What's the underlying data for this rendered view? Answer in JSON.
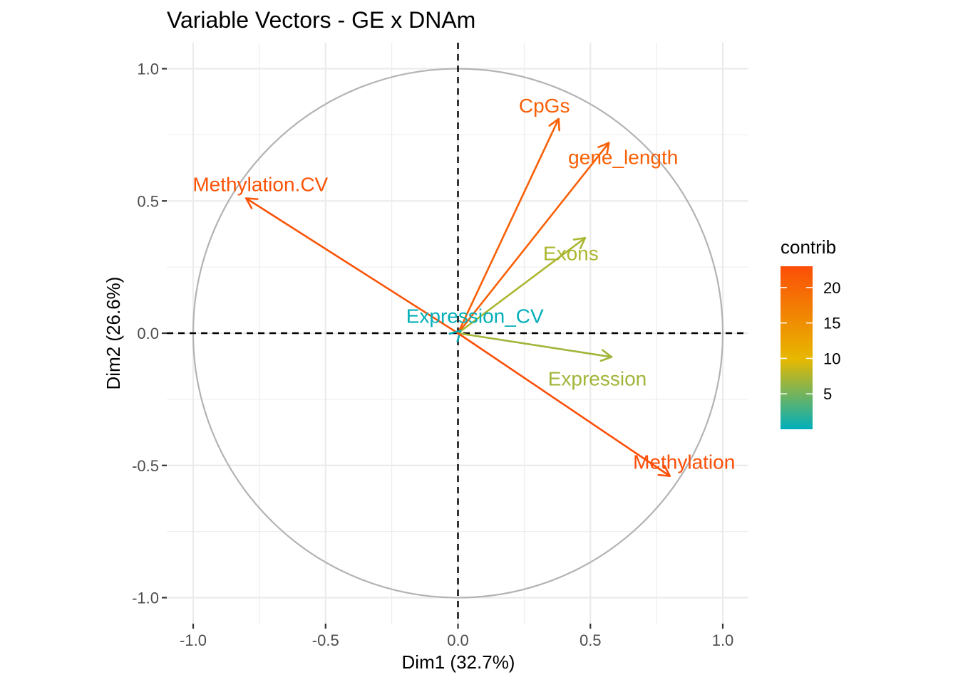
{
  "chart_data": {
    "type": "scatter",
    "subtype": "pca-variable-correlation-circle",
    "title": "Variable Vectors - GE x DNAm",
    "xlabel": "Dim1 (32.7%)",
    "ylabel": "Dim2 (26.6%)",
    "xlim": [
      -1.1,
      1.1
    ],
    "ylim": [
      -1.1,
      1.1
    ],
    "x_ticks": [
      -1.0,
      -0.5,
      0.0,
      0.5,
      1.0
    ],
    "x_tick_labels": [
      "-1.0",
      "-0.5",
      "0.0",
      "0.5",
      "1.0"
    ],
    "y_ticks": [
      -1.0,
      -0.5,
      0.0,
      0.5,
      1.0
    ],
    "y_tick_labels": [
      "-1.0",
      "-0.5",
      "0.0",
      "0.5",
      "1.0"
    ],
    "grid": true,
    "unit_circle": true,
    "reference_lines": [
      {
        "axis": "x",
        "value": 0,
        "style": "dashed"
      },
      {
        "axis": "y",
        "value": 0,
        "style": "dashed"
      }
    ],
    "variables": [
      {
        "name": "CpGs",
        "x": 0.38,
        "y": 0.81,
        "contrib": 21
      },
      {
        "name": "gene_length",
        "x": 0.57,
        "y": 0.72,
        "contrib": 21
      },
      {
        "name": "Methylation.CV",
        "x": -0.8,
        "y": 0.51,
        "contrib": 22.5
      },
      {
        "name": "Exons",
        "x": 0.48,
        "y": 0.36,
        "contrib": 8.5
      },
      {
        "name": "Expression_CV",
        "x": 0.01,
        "y": 0.01,
        "contrib": 0.2
      },
      {
        "name": "Expression",
        "x": 0.58,
        "y": -0.09,
        "contrib": 8
      },
      {
        "name": "Methylation",
        "x": 0.8,
        "y": -0.54,
        "contrib": 23
      }
    ],
    "legend": {
      "title": "contrib",
      "placement": "right",
      "type": "continuous-gradient",
      "range": [
        0,
        23
      ],
      "breaks": [
        5,
        10,
        15,
        20
      ],
      "break_labels": [
        "5",
        "10",
        "15",
        "20"
      ],
      "colors": [
        "#00AFBB",
        "#E7B800",
        "#FC4E07"
      ]
    }
  }
}
